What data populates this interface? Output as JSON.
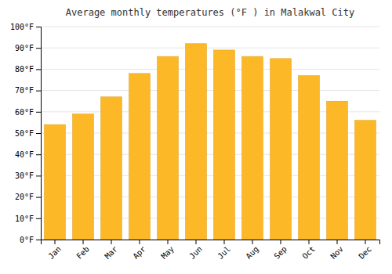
{
  "chart_data": {
    "type": "bar",
    "title": "Average monthly temperatures (°F ) in Malakwal City",
    "categories": [
      "Jan",
      "Feb",
      "Mar",
      "Apr",
      "May",
      "Jun",
      "Jul",
      "Aug",
      "Sep",
      "Oct",
      "Nov",
      "Dec"
    ],
    "values": [
      54,
      59,
      67,
      78,
      86,
      92,
      89,
      86,
      85,
      77,
      65,
      56
    ],
    "color": "#FDB827",
    "ylim": [
      0,
      100
    ],
    "yticks": [
      {
        "value": 0,
        "label": "0°F"
      },
      {
        "value": 10,
        "label": "10°F"
      },
      {
        "value": 20,
        "label": "20°F"
      },
      {
        "value": 30,
        "label": "30°F"
      },
      {
        "value": 40,
        "label": "40°F"
      },
      {
        "value": 50,
        "label": "50°F"
      },
      {
        "value": 60,
        "label": "60°F"
      },
      {
        "value": 70,
        "label": "70°F"
      },
      {
        "value": 80,
        "label": "80°F"
      },
      {
        "value": 90,
        "label": "90°F"
      },
      {
        "value": 100,
        "label": "100°F"
      }
    ],
    "grid": true
  }
}
